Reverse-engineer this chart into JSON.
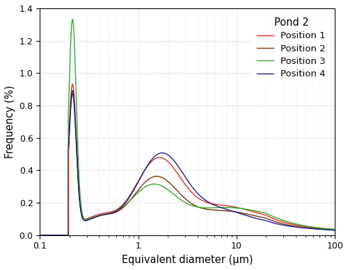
{
  "title": "Pond 2",
  "xlabel": "Equivalent diameter (μm)",
  "ylabel": "Frequency (%)",
  "xlim": [
    0.1,
    100
  ],
  "ylim": [
    0.0,
    1.4
  ],
  "yticks": [
    0.0,
    0.2,
    0.4,
    0.6,
    0.8,
    1.0,
    1.2,
    1.4
  ],
  "colors": {
    "Position 1": "#e8291c",
    "Position 2": "#7b3300",
    "Position 3": "#2aaa2a",
    "Position 4": "#1a1a8c"
  },
  "legend_title": "Pond 2",
  "background_color": "#ffffff",
  "grid_color": "#aaaaaa",
  "cutoff": 0.195
}
